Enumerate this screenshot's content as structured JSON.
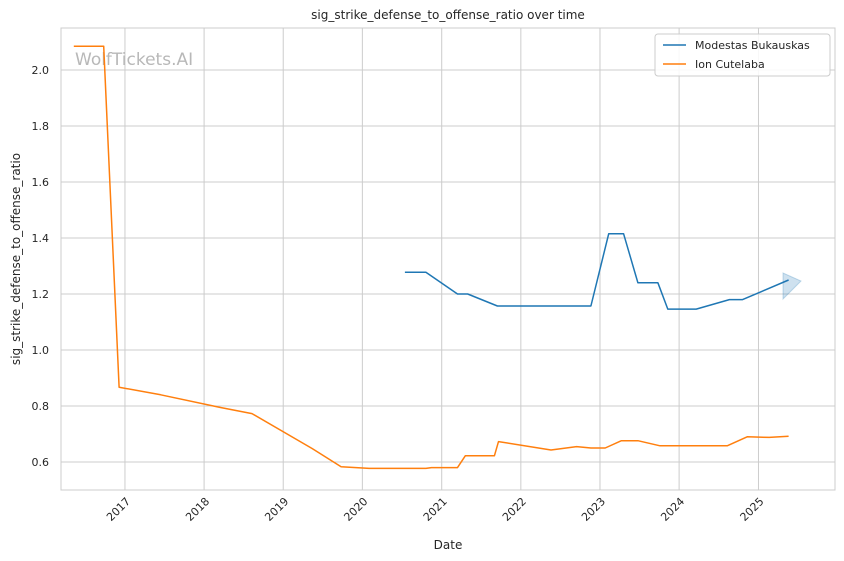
{
  "chart_data": {
    "type": "line",
    "title": "sig_strike_defense_to_offense_ratio over time",
    "xlabel": "Date",
    "ylabel": "sig_strike_defense_to_offense_ratio",
    "watermark": "WolfTickets.AI",
    "x_ticks": [
      "2017",
      "2018",
      "2019",
      "2020",
      "2021",
      "2022",
      "2023",
      "2024",
      "2025"
    ],
    "y_ticks": [
      "0.6",
      "0.8",
      "1.0",
      "1.2",
      "1.4",
      "1.6",
      "1.8",
      "2.0"
    ],
    "xlim": [
      "2016-03-12",
      "2025-12-20"
    ],
    "ylim": [
      0.5,
      2.15
    ],
    "grid": true,
    "legend_position": "top-right",
    "series": [
      {
        "name": "Modestas Bukauskas",
        "color": "#1f77b4",
        "points": [
          [
            "2020-07-15",
            1.278
          ],
          [
            "2020-10-20",
            1.278
          ],
          [
            "2021-03-15",
            1.2
          ],
          [
            "2021-05-01",
            1.2
          ],
          [
            "2021-09-15",
            1.157
          ],
          [
            "2022-11-20",
            1.157
          ],
          [
            "2023-02-10",
            1.415
          ],
          [
            "2023-04-20",
            1.415
          ],
          [
            "2023-06-25",
            1.24
          ],
          [
            "2023-09-25",
            1.24
          ],
          [
            "2023-11-10",
            1.146
          ],
          [
            "2024-03-20",
            1.146
          ],
          [
            "2024-08-20",
            1.18
          ],
          [
            "2024-10-20",
            1.18
          ],
          [
            "2025-05-20",
            1.25
          ]
        ]
      },
      {
        "name": "Ion Cutelaba",
        "color": "#ff7f0e",
        "points": [
          [
            "2016-05-10",
            2.085
          ],
          [
            "2016-09-25",
            2.085
          ],
          [
            "2016-12-05",
            0.867
          ],
          [
            "2017-06-15",
            0.84
          ],
          [
            "2018-03-15",
            0.795
          ],
          [
            "2018-08-10",
            0.773
          ],
          [
            "2019-05-15",
            0.648
          ],
          [
            "2019-09-25",
            0.583
          ],
          [
            "2020-02-01",
            0.577
          ],
          [
            "2020-10-20",
            0.577
          ],
          [
            "2020-11-15",
            0.58
          ],
          [
            "2021-03-15",
            0.58
          ],
          [
            "2021-04-20",
            0.622
          ],
          [
            "2021-09-01",
            0.622
          ],
          [
            "2021-09-20",
            0.673
          ],
          [
            "2022-05-20",
            0.643
          ],
          [
            "2022-09-15",
            0.655
          ],
          [
            "2022-11-20",
            0.65
          ],
          [
            "2023-01-25",
            0.65
          ],
          [
            "2023-04-10",
            0.676
          ],
          [
            "2023-06-25",
            0.676
          ],
          [
            "2023-10-05",
            0.658
          ],
          [
            "2024-08-10",
            0.658
          ],
          [
            "2024-11-10",
            0.69
          ],
          [
            "2025-02-20",
            0.688
          ],
          [
            "2025-05-20",
            0.692
          ]
        ]
      }
    ]
  }
}
